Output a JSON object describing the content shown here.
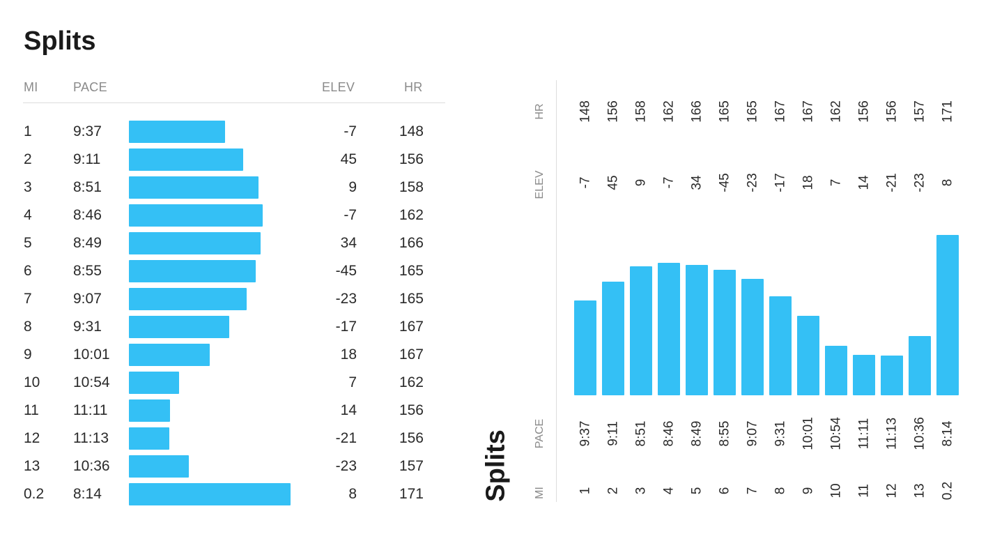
{
  "title": "Splits",
  "headers": {
    "mi": "MI",
    "pace": "PACE",
    "elev": "ELEV",
    "hr": "HR"
  },
  "accent_color": "#34c0f5",
  "chart_data": [
    {
      "type": "bar",
      "orientation": "horizontal",
      "title": "Splits",
      "categories": [
        "1",
        "2",
        "3",
        "4",
        "5",
        "6",
        "7",
        "8",
        "9",
        "10",
        "11",
        "12",
        "13",
        "0.2"
      ],
      "pace_labels": [
        "9:37",
        "9:11",
        "8:51",
        "8:46",
        "8:49",
        "8:55",
        "9:07",
        "9:31",
        "10:01",
        "10:54",
        "11:11",
        "11:13",
        "10:36",
        "8:14"
      ],
      "pace_seconds_per_mile": [
        577,
        551,
        531,
        526,
        529,
        535,
        547,
        571,
        601,
        654,
        671,
        673,
        636,
        494
      ],
      "elev": [
        -7,
        45,
        9,
        -7,
        34,
        -45,
        -23,
        -17,
        18,
        7,
        14,
        -21,
        -23,
        8
      ],
      "hr": [
        148,
        156,
        158,
        162,
        166,
        165,
        165,
        167,
        167,
        162,
        156,
        156,
        157,
        171
      ],
      "bar_value": "speed (faster pace = longer bar)",
      "columns": [
        "MI",
        "PACE",
        "ELEV",
        "HR"
      ]
    },
    {
      "type": "bar",
      "orientation": "vertical",
      "title": "Splits",
      "categories": [
        "1",
        "2",
        "3",
        "4",
        "5",
        "6",
        "7",
        "8",
        "9",
        "10",
        "11",
        "12",
        "13",
        "0.2"
      ],
      "pace_labels": [
        "9:37",
        "9:11",
        "8:51",
        "8:46",
        "8:49",
        "8:55",
        "9:07",
        "9:31",
        "10:01",
        "10:54",
        "11:11",
        "11:13",
        "10:36",
        "8:14"
      ],
      "pace_seconds_per_mile": [
        577,
        551,
        531,
        526,
        529,
        535,
        547,
        571,
        601,
        654,
        671,
        673,
        636,
        494
      ],
      "elev": [
        -7,
        45,
        9,
        -7,
        34,
        -45,
        -23,
        -17,
        18,
        7,
        14,
        -21,
        -23,
        8
      ],
      "hr": [
        148,
        156,
        158,
        162,
        166,
        165,
        165,
        167,
        167,
        162,
        156,
        156,
        157,
        171
      ],
      "bar_value": "speed (faster pace = taller bar)",
      "columns": [
        "MI",
        "PACE",
        "ELEV",
        "HR"
      ]
    }
  ]
}
